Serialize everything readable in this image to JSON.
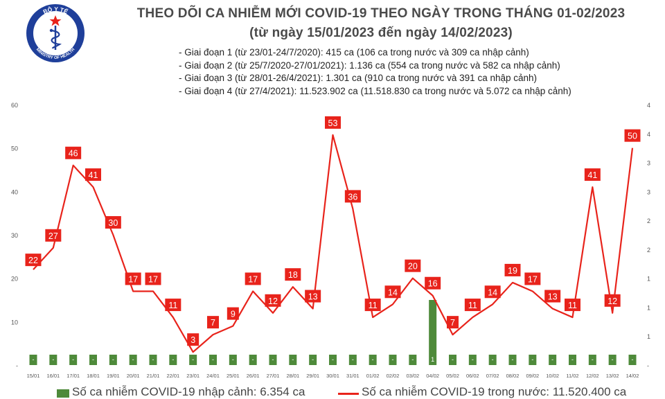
{
  "logo": {
    "top_text": "BỘ Y TẾ",
    "bottom_text": "MINISTRY OF HEALTH",
    "colors": {
      "ring": "#1f3f9a",
      "fill": "#ffffff",
      "star": "#e8231b"
    }
  },
  "header": {
    "title": "THEO DÕI CA NHIỄM MỚI COVID-19 THEO NGÀY TRONG THÁNG 01-02/2023",
    "subtitle": "(từ ngày 15/01/2023 đến ngày 14/02/2023)"
  },
  "notes": [
    "- Giai đoạn 1 (từ 23/01-24/7/2020): 415 ca (106 ca trong nước và 309 ca nhập cảnh)",
    "- Giai đoạn 2 (từ 25/7/2020-27/01/2021): 1.136 ca (554 ca trong nước và 582 ca nhập cảnh)",
    "- Giai đoạn 3 (từ 28/01-26/4/2021): 1.301 ca (910 ca trong nước và 391 ca nhập cảnh)",
    "- Giai đoạn 4 (từ 27/4/2021): 11.523.902 ca (11.518.830 ca trong nước và 5.072 ca nhập cảnh)"
  ],
  "chart_data": {
    "type": "bar+line",
    "categories": [
      "15/01",
      "16/01",
      "17/01",
      "18/01",
      "19/01",
      "20/01",
      "21/01",
      "22/01",
      "23/01",
      "24/01",
      "25/01",
      "26/01",
      "27/01",
      "28/01",
      "29/01",
      "30/01",
      "31/01",
      "01/02",
      "02/02",
      "03/02",
      "04/02",
      "05/02",
      "06/02",
      "07/02",
      "08/02",
      "09/02",
      "10/02",
      "11/02",
      "12/02",
      "13/02",
      "14/02"
    ],
    "series": [
      {
        "name": "Số ca nhiễm COVID-19 nhập cảnh: 6.354 ca",
        "type": "bar",
        "axis": "right",
        "color": "#4e8a3a",
        "values": [
          0,
          0,
          0,
          0,
          0,
          0,
          0,
          0,
          0,
          0,
          0,
          0,
          0,
          0,
          0,
          0,
          0,
          0,
          0,
          0,
          1,
          0,
          0,
          0,
          0,
          0,
          0,
          0,
          0,
          0,
          0
        ],
        "labels": [
          "-",
          "-",
          "-",
          "-",
          "-",
          "-",
          "-",
          "-",
          "-",
          "-",
          "-",
          "-",
          "-",
          "-",
          "-",
          "-",
          "-",
          "-",
          "-",
          "-",
          "1",
          "-",
          "-",
          "-",
          "-",
          "-",
          "-",
          "-",
          "-",
          "-",
          "-"
        ]
      },
      {
        "name": "Số ca nhiễm COVID-19 trong nước: 11.520.400 ca",
        "type": "line",
        "axis": "left",
        "color": "#e8231b",
        "values": [
          22,
          27,
          46,
          41,
          30,
          17,
          17,
          11,
          3,
          7,
          9,
          17,
          12,
          18,
          13,
          53,
          36,
          11,
          14,
          20,
          16,
          7,
          11,
          14,
          19,
          17,
          13,
          11,
          41,
          12,
          50
        ]
      }
    ],
    "y_left": {
      "ylim": [
        0,
        60
      ],
      "ticks": [
        "-",
        "10",
        "20",
        "30",
        "40",
        "50",
        "60"
      ]
    },
    "y_right": {
      "ylim": [
        0,
        4
      ],
      "ticks": [
        "-",
        "1",
        "1",
        "1",
        "2",
        "2",
        "3",
        "3",
        "4",
        "4"
      ]
    },
    "grid": false,
    "legend": "bottom"
  }
}
